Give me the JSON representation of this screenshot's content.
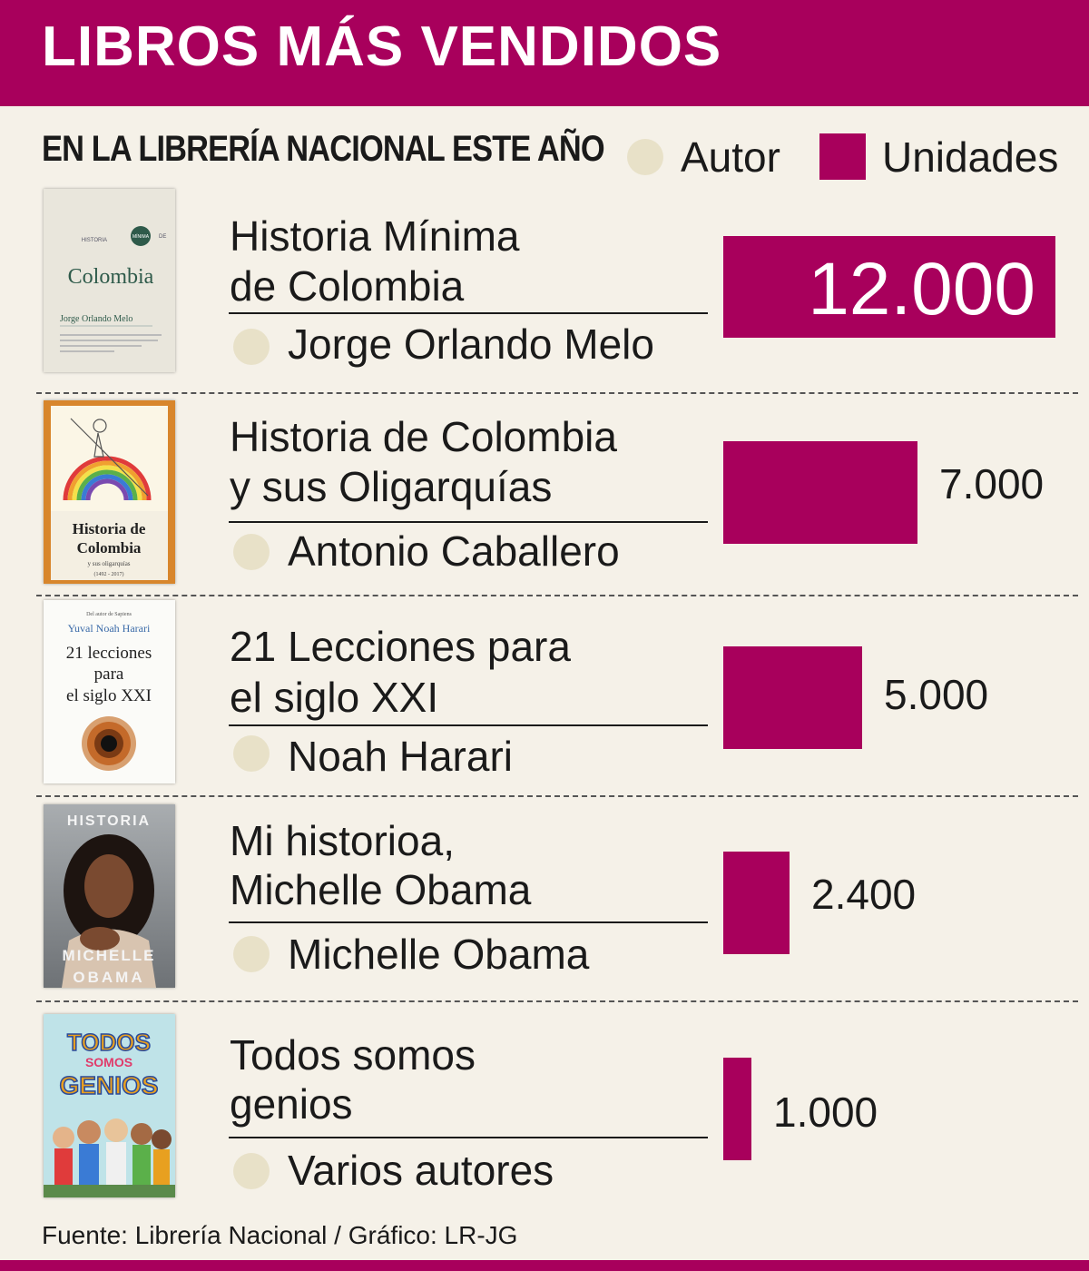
{
  "header": {
    "title": "LIBROS MÁS VENDIDOS"
  },
  "subtitle": "EN LA LIBRERÍA NACIONAL ESTE AÑO",
  "legend": {
    "author_label": "Autor",
    "units_label": "Unidades"
  },
  "colors": {
    "accent": "#a8005c",
    "author_dot": "#e8e1c8",
    "background": "#f5f1e8"
  },
  "books": [
    {
      "title_lines": [
        "Historia Mínima",
        "de Colombia"
      ],
      "author": "Jorge Orlando Melo",
      "units_label": "12.000",
      "cover": {
        "series": "HISTORIA",
        "badge": "MÍNIMA",
        "de": "DE",
        "name": "Colombia",
        "author": "Jorge Orlando Melo"
      }
    },
    {
      "title_lines": [
        "Historia de Colombia",
        "y sus Oligarquías"
      ],
      "author": "Antonio Caballero",
      "units_label": "7.000",
      "cover": {
        "line1": "Historia de",
        "line2": "Colombia",
        "line3": "y sus oligarquías",
        "line4": "(1492 - 2017)"
      }
    },
    {
      "title_lines": [
        "21 Lecciones para",
        "el siglo XXI"
      ],
      "author": "Noah Harari",
      "units_label": "5.000",
      "cover": {
        "pre": "Del autor de Sapiens",
        "author": "Yuval Noah Harari",
        "line1": "21 lecciones",
        "line2": "para",
        "line3": "el siglo XXI"
      }
    },
    {
      "title_lines": [
        "Mi historioa,",
        "Michelle Obama"
      ],
      "author": "Michelle Obama",
      "units_label": "2.400",
      "cover": {
        "top": "HISTORIA",
        "name1": "MICHELLE",
        "name2": "OBAMA"
      }
    },
    {
      "title_lines": [
        "Todos somos",
        "genios"
      ],
      "author": "Varios autores",
      "units_label": "1.000",
      "cover": {
        "line1": "TODOS",
        "line2": "SOMOS",
        "line3": "GENIOS"
      }
    }
  ],
  "chart_data": {
    "type": "bar",
    "title": "LIBROS MÁS VENDIDOS",
    "subtitle": "EN LA LIBRERÍA NACIONAL ESTE AÑO",
    "categories": [
      "Historia Mínima de Colombia",
      "Historia de Colombia y sus Oligarquías",
      "21 Lecciones para el siglo XXI",
      "Mi historioa, Michelle Obama",
      "Todos somos genios"
    ],
    "authors": [
      "Jorge Orlando Melo",
      "Antonio Caballero",
      "Noah Harari",
      "Michelle Obama",
      "Varios autores"
    ],
    "values": [
      12000,
      7000,
      5000,
      2400,
      1000
    ],
    "orientation": "horizontal",
    "legend": [
      "Autor",
      "Unidades"
    ],
    "legend_position": "top-right",
    "grid": false
  },
  "source": "Fuente: Librería Nacional / Gráfico: LR-JG"
}
